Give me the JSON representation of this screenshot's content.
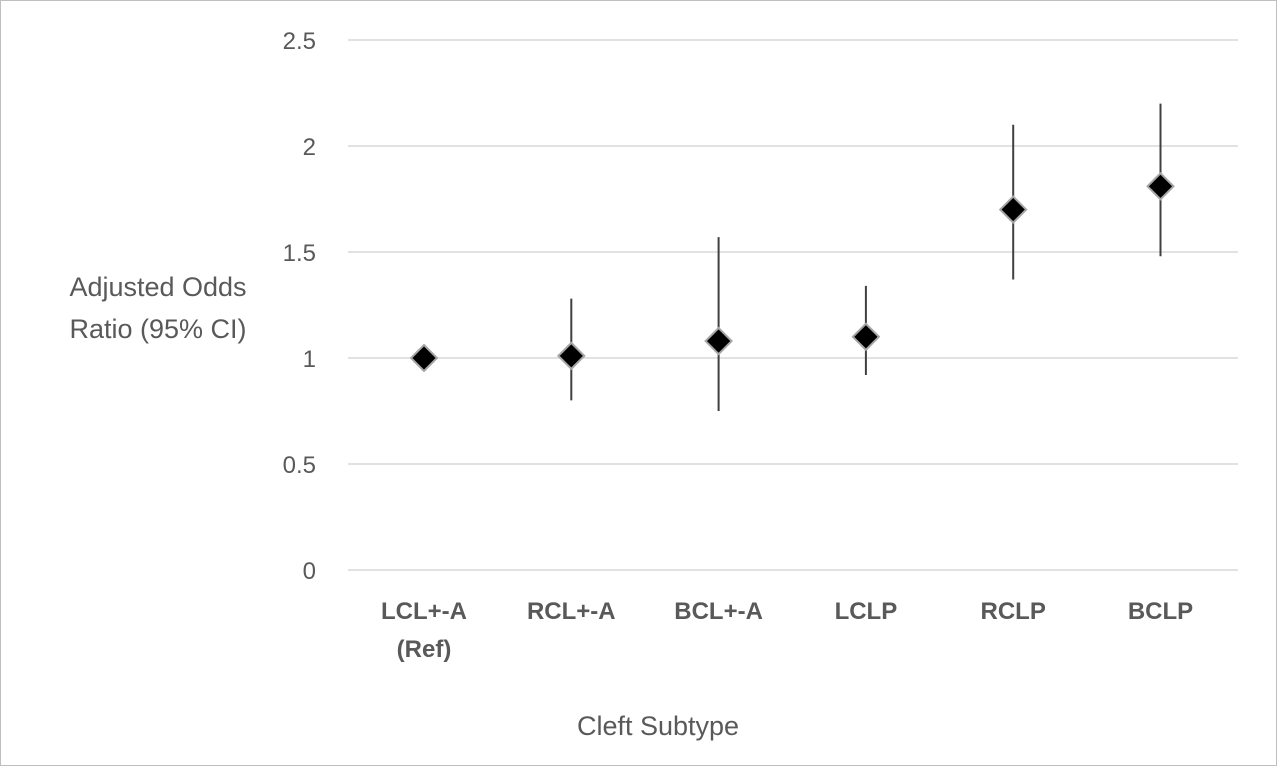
{
  "chart_data": {
    "type": "scatter",
    "title": "",
    "ylabel_lines": [
      "Adjusted Odds",
      "Ratio (95% CI)"
    ],
    "xlabel": "Cleft Subtype",
    "ylim": [
      0,
      2.5
    ],
    "yticks": [
      "0",
      "0.5",
      "1",
      "1.5",
      "2",
      "2.5"
    ],
    "ytick_values": [
      0,
      0.5,
      1,
      1.5,
      2,
      2.5
    ],
    "grid": true,
    "marker": "diamond",
    "marker_color": "#000000",
    "errorbar_color": "#404040",
    "gridline_color": "#d9d9d9",
    "categories": [
      {
        "lines": [
          "LCL+-A",
          "(Ref)"
        ]
      },
      {
        "lines": [
          "RCL+-A"
        ]
      },
      {
        "lines": [
          "BCL+-A"
        ]
      },
      {
        "lines": [
          "LCLP"
        ]
      },
      {
        "lines": [
          "RCLP"
        ]
      },
      {
        "lines": [
          "BCLP"
        ]
      }
    ],
    "points": [
      {
        "value": 1.0,
        "ci_low": null,
        "ci_high": null
      },
      {
        "value": 1.01,
        "ci_low": 0.8,
        "ci_high": 1.28
      },
      {
        "value": 1.08,
        "ci_low": 0.75,
        "ci_high": 1.57
      },
      {
        "value": 1.1,
        "ci_low": 0.92,
        "ci_high": 1.34
      },
      {
        "value": 1.7,
        "ci_low": 1.37,
        "ci_high": 2.1
      },
      {
        "value": 1.81,
        "ci_low": 1.48,
        "ci_high": 2.2
      }
    ]
  }
}
